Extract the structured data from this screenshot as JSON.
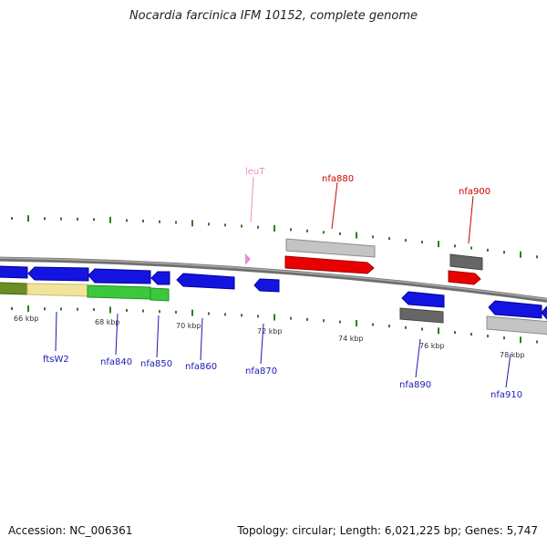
{
  "title": "Nocardia farcinica IFM 10152, complete genome",
  "footer": {
    "accession": "Accession: NC_006361",
    "summary": "Topology: circular; Length: 6,021,225 bp; Genes: 5,747"
  },
  "colors": {
    "backbone": "#8a8a8a",
    "tick": "#2e7d1e",
    "blue_gene": "#1414e0",
    "red_gene": "#e80000",
    "dark_gray_gene": "#666666",
    "light_gray_gene": "#c4c4c4",
    "green_gene": "#3cc83c",
    "olive_gene": "#6b8e23",
    "yellow_gene": "#efe49a",
    "trna_pink": "#e890c8",
    "blue_label": "#1a1ab4",
    "red_label": "#cc0000",
    "pink_label": "#e890c8"
  },
  "kbp_labels": [
    "66 kbp",
    "68 kbp",
    "70 kbp",
    "72 kbp",
    "74 kbp",
    "76 kbp",
    "78 kbp"
  ],
  "gene_labels": {
    "ftsW2": "ftsW2",
    "nfa840": "nfa840",
    "nfa850": "nfa850",
    "nfa860": "nfa860",
    "nfa870": "nfa870",
    "nfa880": "nfa880",
    "nfa890": "nfa890",
    "nfa900": "nfa900",
    "nfa910": "nfa910",
    "leuT": "leuT"
  }
}
